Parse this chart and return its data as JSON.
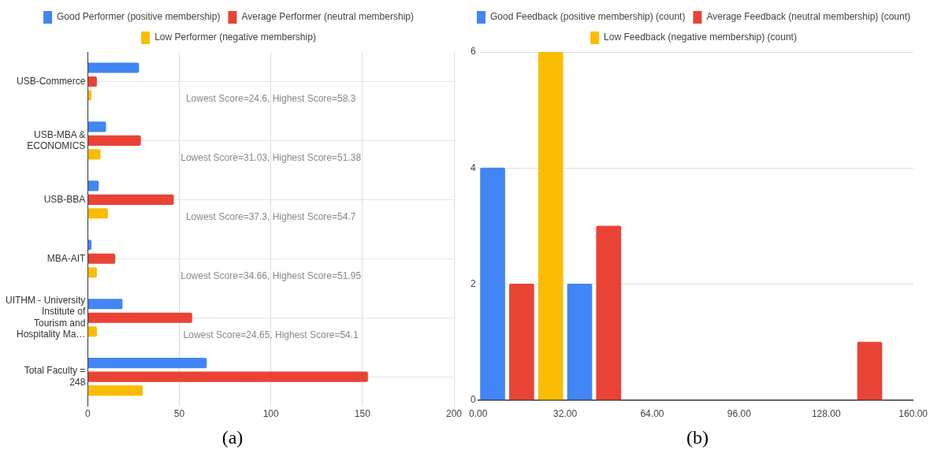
{
  "chart_data": [
    {
      "type": "bar",
      "orientation": "horizontal",
      "categories": [
        "USB-Commerce",
        "USB-MBA & ECONOMICS",
        "USB-BBA",
        "MBA-AIT",
        "UITHM - University Institute of Tourism and Hospitality Ma…",
        "Total Faculty = 248"
      ],
      "series": [
        {
          "name": "Good Performer (positive membership)",
          "color": "#4285f4",
          "values": [
            28,
            10,
            6,
            2,
            19,
            65
          ]
        },
        {
          "name": "Average Performer (neutral membership)",
          "color": "#ea4335",
          "values": [
            5,
            29,
            47,
            15,
            57,
            153
          ]
        },
        {
          "name": "Low Performer (negative membership)",
          "color": "#fbbc04",
          "values": [
            2,
            7,
            11,
            5,
            5,
            30
          ]
        }
      ],
      "xlim": [
        0,
        200
      ],
      "xticks": [
        0,
        50,
        100,
        150,
        200
      ],
      "grid": true,
      "legend": "top",
      "annotations": [
        "Lowest Score=24.6, Highest Score=58.3",
        "Lowest Score=31.03, Highest Score=51.38",
        "Lowest Score=37.3, Highest Score=54.7",
        "Lowest Score=34.66, Highest Score=51.95",
        "Lowest Score=24.65, Highest Score=54.1",
        "(a)"
      ]
    },
    {
      "type": "bar",
      "series": [
        {
          "name": "Good Feedback (positive membership) (count)",
          "color": "#4285f4",
          "x": [
            5.33,
            37.33
          ],
          "values": [
            4,
            2
          ]
        },
        {
          "name": "Average Feedback (neutral membership) (count)",
          "color": "#ea4335",
          "x": [
            16,
            48,
            144
          ],
          "values": [
            2,
            3,
            1
          ]
        },
        {
          "name": "Low Feedback (negative membership) (count)",
          "color": "#fbbc04",
          "x": [
            26.67
          ],
          "values": [
            6
          ]
        }
      ],
      "xlim": [
        0,
        160
      ],
      "xticks": [
        {
          "value": 0,
          "label": "0.00"
        },
        {
          "value": 32,
          "label": "32.00"
        },
        {
          "value": 64,
          "label": "64.00"
        },
        {
          "value": 96,
          "label": "96.00"
        },
        {
          "value": 128,
          "label": "128.00"
        },
        {
          "value": 160,
          "label": "160.00"
        }
      ],
      "ylim": [
        0,
        6
      ],
      "yticks": [
        0,
        2,
        4,
        6
      ],
      "grid": "y",
      "legend": "top",
      "annotations": [
        "(b)"
      ]
    }
  ]
}
